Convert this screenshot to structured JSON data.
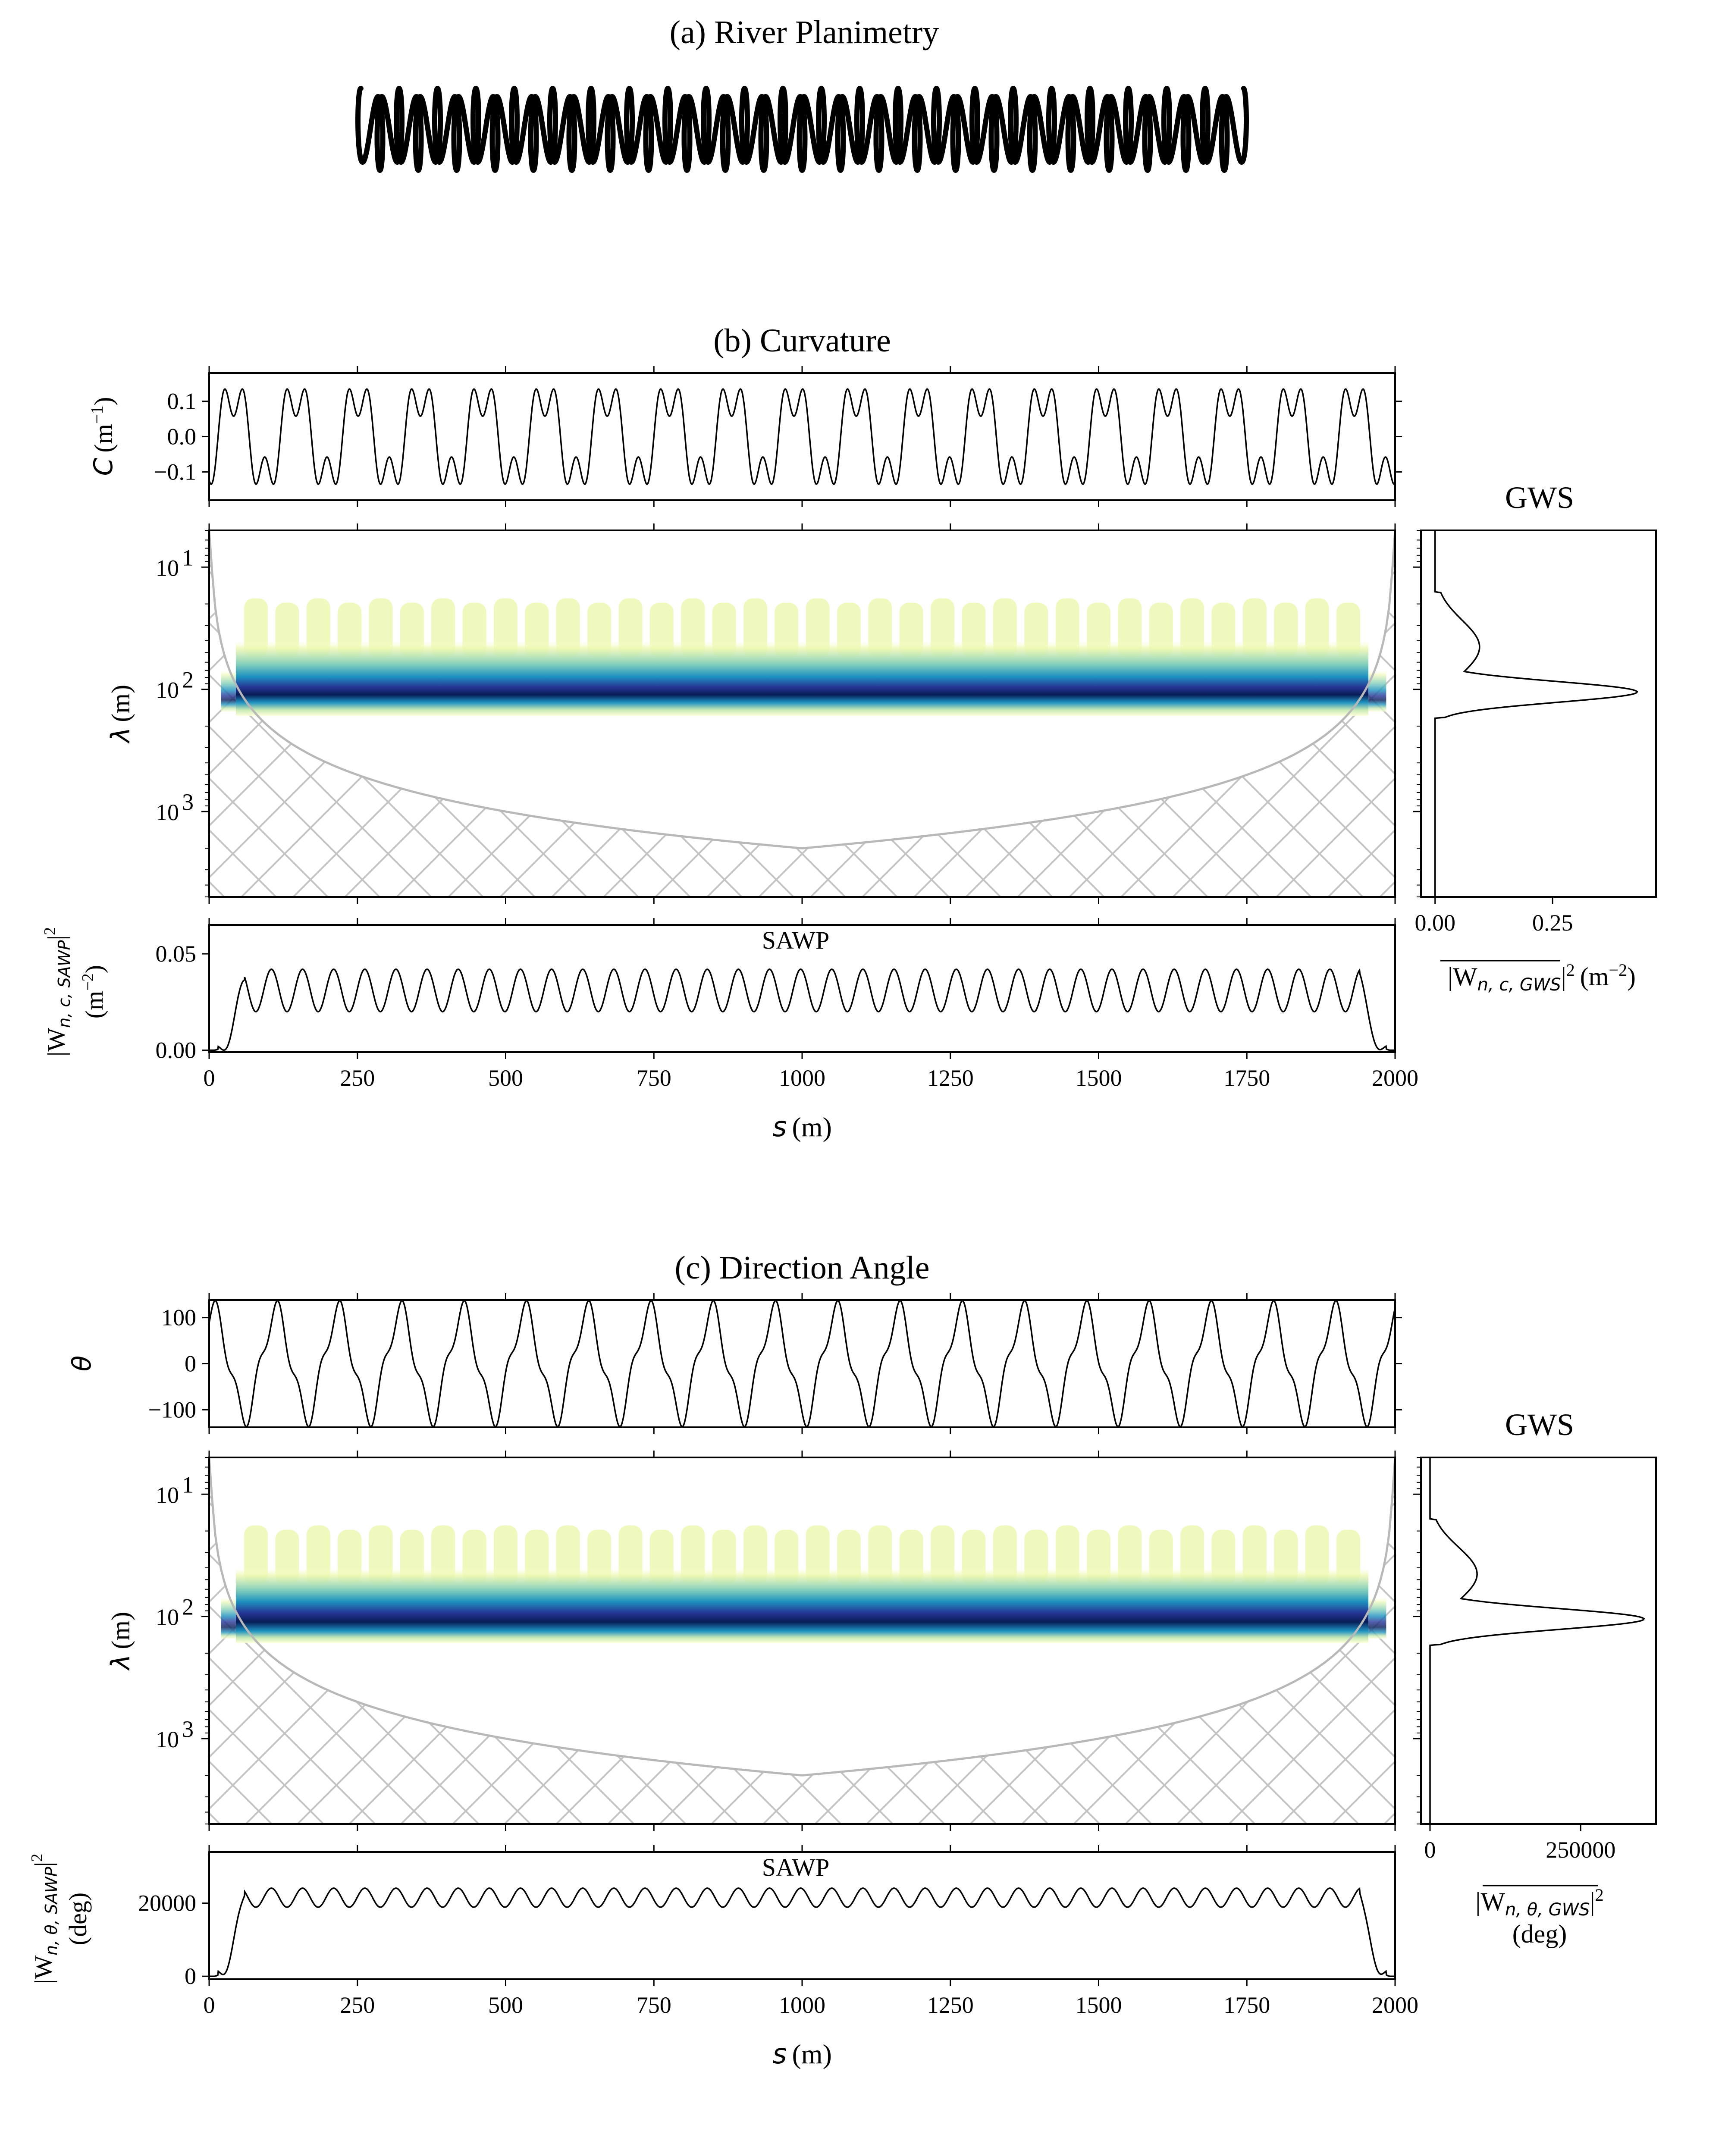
{
  "panel_a": {
    "title": "(a) River Planimetry",
    "n_loops": 23
  },
  "panel_b": {
    "title": "(b) Curvature",
    "signal_ylabel": "C (m⁻¹)",
    "signal_ylabel_var": "C",
    "signal_ylabel_unit": "(m",
    "signal_ylabel_exp": "−1",
    "signal_ylabel_close": ")",
    "signal_yticks": [
      "0.1",
      "0.0",
      "−0.1"
    ],
    "signal_ytick_values": [
      0.1,
      0.0,
      -0.1
    ],
    "signal_ylim": [
      -0.18,
      0.18
    ],
    "signal_amplitude": 0.17,
    "wavelet_ylabel": "λ (m)",
    "wavelet_yticks": [
      "10",
      "10",
      "10"
    ],
    "wavelet_ytick_exps": [
      "1",
      "2",
      "3"
    ],
    "gws_title": "GWS",
    "gws_xticks": [
      "0.00",
      "0.25"
    ],
    "gws_xtick_values": [
      0.0,
      0.25
    ],
    "gws_xlim": [
      -0.03,
      0.47
    ],
    "gws_xlabel": "|W̅n,c,GWS|² (m⁻²)",
    "gws_xlabel_main": "|W",
    "gws_xlabel_sub": "n, c, GWS",
    "gws_xlabel_tail": "|",
    "gws_xlabel_exp": "2",
    "gws_xlabel_unit": "(m",
    "gws_xlabel_unit_exp": "−2",
    "gws_xlabel_unit_close": ")",
    "gws_peak": 0.43,
    "sawp_title": "SAWP",
    "sawp_ylabel": "|W̅n,c,SAWP|² (m⁻²)",
    "sawp_ylabel_main": "|W",
    "sawp_ylabel_sub": "n, c, SAWP",
    "sawp_ylabel_exp": "2",
    "sawp_ylabel_unit": "(m",
    "sawp_ylabel_unit_exp": "−2",
    "sawp_ylabel_unit_close": ")",
    "sawp_yticks": [
      "0.05",
      "0.00"
    ],
    "sawp_ytick_values": [
      0.05,
      0.0
    ],
    "sawp_ylim": [
      -0.001,
      0.065
    ],
    "sawp_mean": 0.031,
    "sawp_amp": 0.011
  },
  "panel_c": {
    "title": "(c) Direction Angle",
    "signal_ylabel": "θ",
    "signal_yticks": [
      "100",
      "0",
      "−100"
    ],
    "signal_ytick_values": [
      100,
      0,
      -100
    ],
    "signal_ylim": [
      -138,
      138
    ],
    "signal_amplitude": 124,
    "wavelet_ylabel": "λ (m)",
    "wavelet_yticks": [
      "10",
      "10",
      "10"
    ],
    "wavelet_ytick_exps": [
      "1",
      "2",
      "3"
    ],
    "gws_title": "GWS",
    "gws_xticks": [
      "0",
      "250000"
    ],
    "gws_xtick_values": [
      0,
      250000
    ],
    "gws_xlim": [
      -15000,
      375000
    ],
    "gws_xlabel": "|W̅n,θ,GWS|² (deg)",
    "gws_xlabel_main": "|W",
    "gws_xlabel_sub": "n, θ, GWS",
    "gws_xlabel_tail": "|",
    "gws_xlabel_exp": "2",
    "gws_xlabel_unit2": "(deg)",
    "gws_peak": 355000,
    "sawp_title": "SAWP",
    "sawp_ylabel": "|W̅n,θ,SAWP|² (deg)",
    "sawp_ylabel_main": "|W",
    "sawp_ylabel_sub": "n, θ, SAWP",
    "sawp_ylabel_exp": "2",
    "sawp_ylabel_unit": "(deg)",
    "sawp_yticks": [
      "20000",
      "0"
    ],
    "sawp_ytick_values": [
      20000,
      0
    ],
    "sawp_ylim": [
      -800,
      34000
    ],
    "sawp_mean": 21500,
    "sawp_amp": 2600
  },
  "shared": {
    "xticks": [
      "0",
      "250",
      "500",
      "750",
      "1000",
      "1250",
      "1500",
      "1750",
      "2000"
    ],
    "xtick_values": [
      0,
      250,
      500,
      750,
      1000,
      1250,
      1500,
      1750,
      2000
    ],
    "xlim": [
      0,
      2000
    ],
    "xlabel": "s (m)",
    "xlabel_var": "s",
    "xlabel_unit": "(m)",
    "meander_wavelength": 105,
    "wavelength_range": [
      5,
      5000
    ]
  },
  "chart_data": [
    {
      "type": "line",
      "title": "(b) Curvature",
      "xlabel": "s (m)",
      "ylabel": "C (m⁻¹)",
      "x_range": [
        0,
        2000
      ],
      "ylim": [
        -0.18,
        0.18
      ],
      "series": [
        {
          "description": "periodic curvature, amplitude about 0.17, wavelength about 105 m"
        }
      ]
    },
    {
      "type": "heatmap",
      "ylabel": "λ (m)",
      "x_range": [
        0,
        2000
      ],
      "y_scale": "log",
      "dominant_wavelength": 105
    },
    {
      "type": "line",
      "title": "SAWP",
      "xlabel": "s (m)",
      "ylim": [
        0,
        0.065
      ],
      "values_range": [
        0.02,
        0.042
      ]
    },
    {
      "type": "line",
      "title": "GWS",
      "peak_value": 0.43,
      "peak_wavelength": 105
    },
    {
      "type": "line",
      "title": "(c) Direction Angle",
      "xlabel": "s (m)",
      "ylabel": "θ",
      "ylim": [
        -138,
        138
      ],
      "amplitude": 124
    },
    {
      "type": "line",
      "title": "SAWP",
      "ylim": [
        0,
        34000
      ],
      "values_range": [
        18900,
        24100
      ]
    },
    {
      "type": "line",
      "title": "GWS",
      "peak_value": 355000,
      "peak_wavelength": 105
    }
  ]
}
